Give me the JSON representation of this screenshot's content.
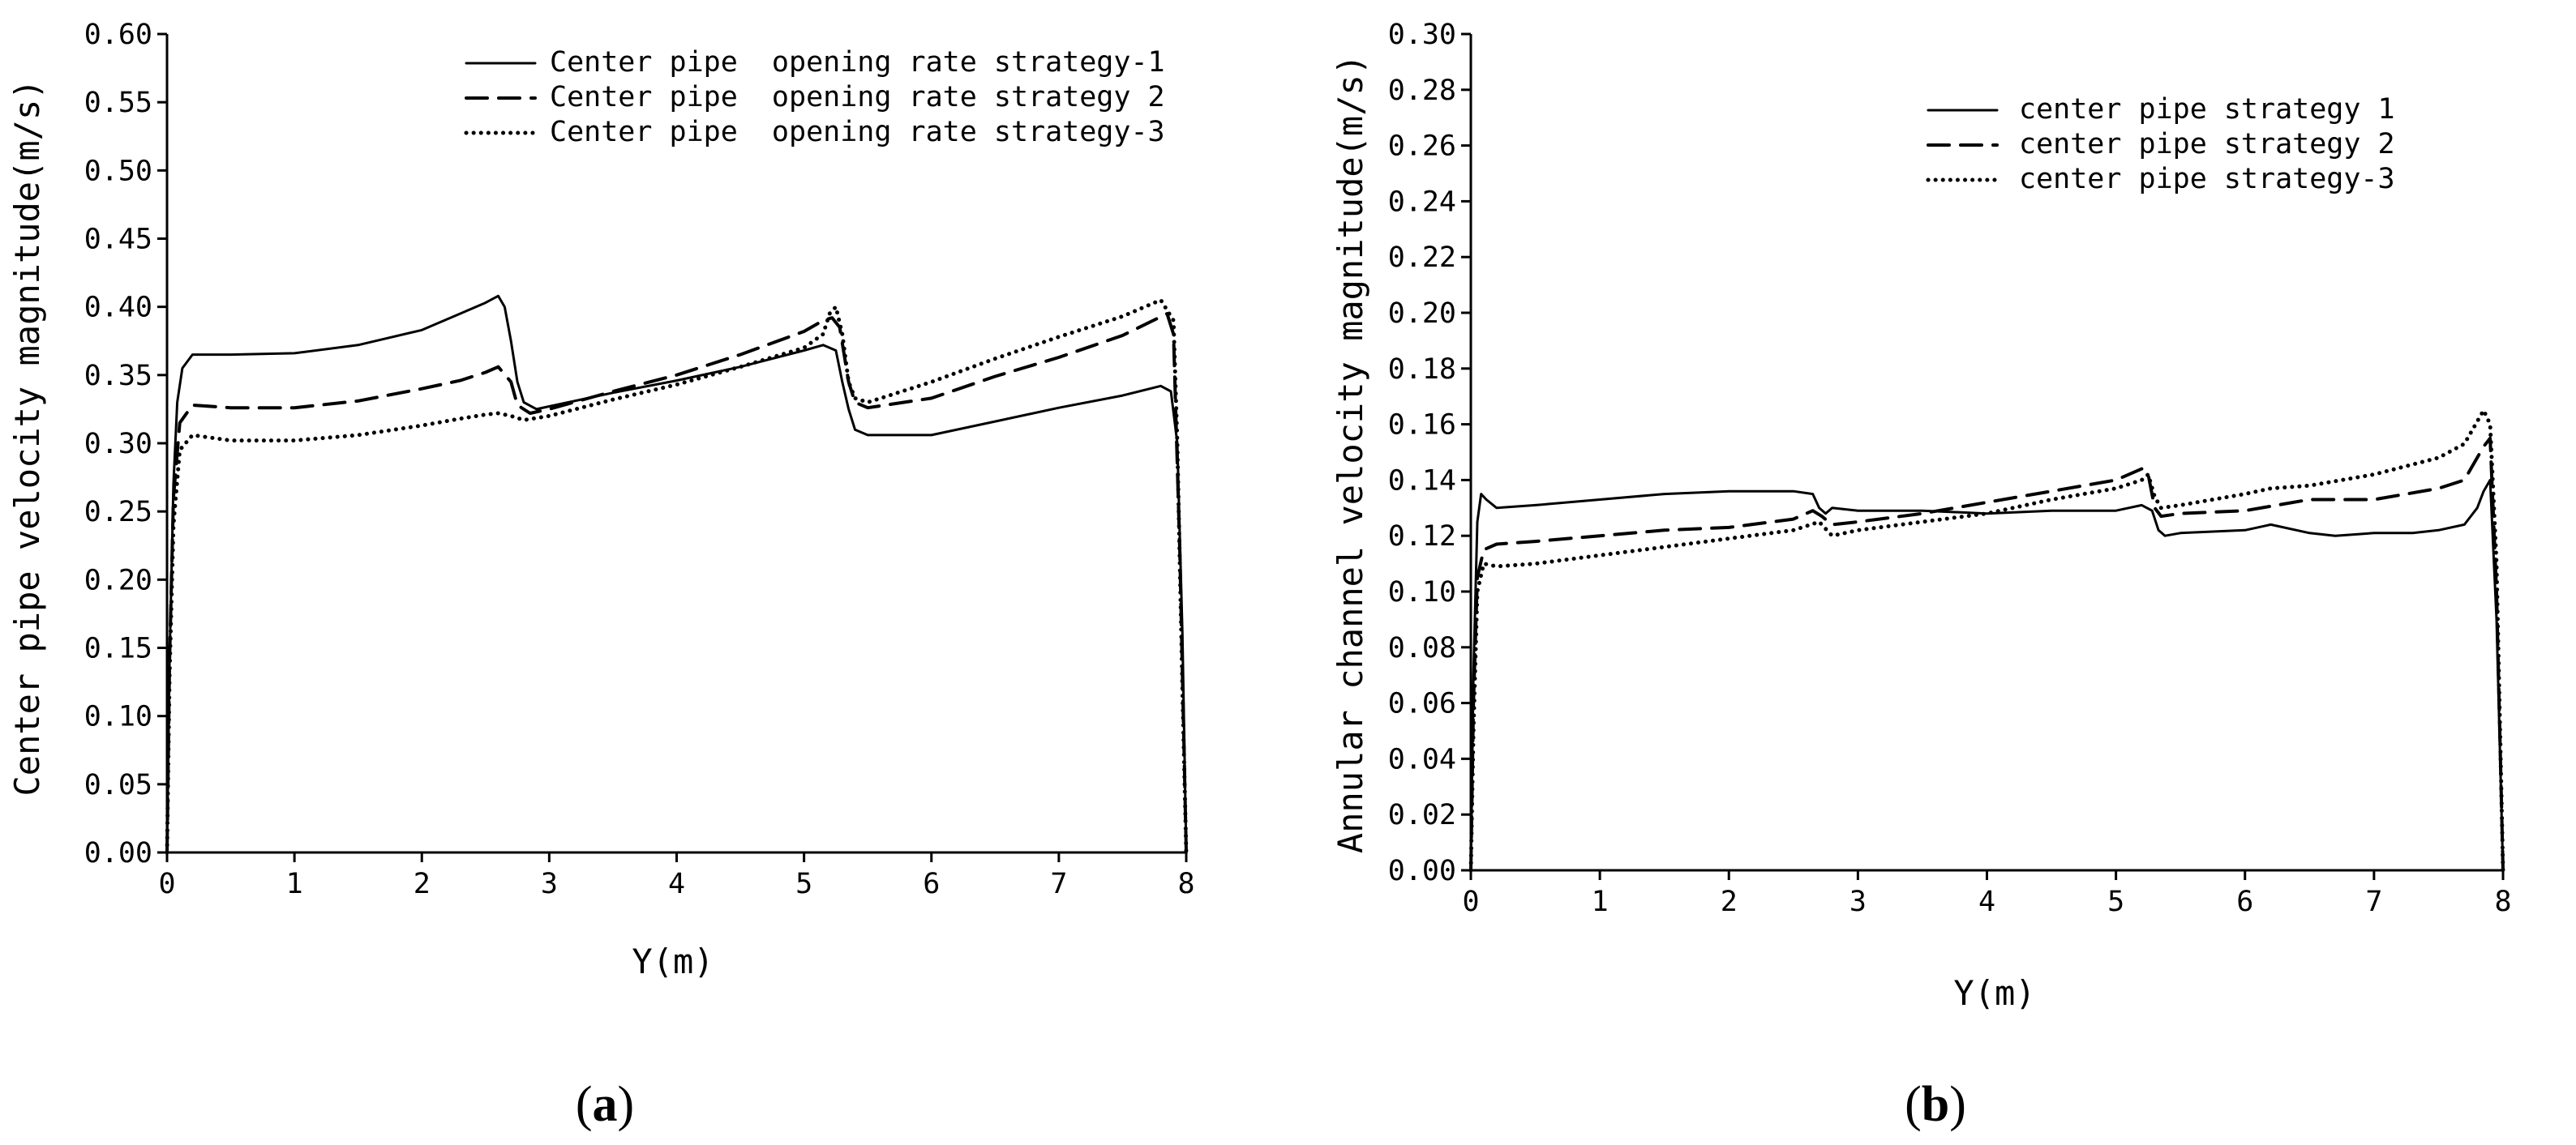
{
  "chart_data": [
    {
      "type": "line",
      "panel_label": "a",
      "title": "",
      "xlabel": "Y(m)",
      "ylabel": "Center pipe velocity magnitude(m/s)",
      "xlim": [
        0,
        8
      ],
      "ylim": [
        0,
        0.6
      ],
      "xticks": [
        "0",
        "1",
        "2",
        "3",
        "4",
        "5",
        "6",
        "7",
        "8"
      ],
      "yticks": [
        "0.00",
        "0.05",
        "0.10",
        "0.15",
        "0.20",
        "0.25",
        "0.30",
        "0.35",
        "0.40",
        "0.45",
        "0.50",
        "0.55",
        "0.60"
      ],
      "legend_position": "top-right",
      "grid": false,
      "series": [
        {
          "name": "Center pipe  opening rate strategy-1",
          "style": "solid",
          "x": [
            0,
            0.02,
            0.05,
            0.08,
            0.12,
            0.2,
            0.5,
            1.0,
            1.5,
            2.0,
            2.3,
            2.5,
            2.6,
            2.65,
            2.7,
            2.75,
            2.8,
            2.9,
            3.0,
            3.5,
            4.0,
            4.5,
            5.0,
            5.15,
            5.25,
            5.3,
            5.35,
            5.4,
            5.5,
            6.0,
            6.5,
            7.0,
            7.5,
            7.8,
            7.88,
            7.93,
            7.97,
            8.0
          ],
          "y": [
            0.0,
            0.14,
            0.27,
            0.33,
            0.355,
            0.365,
            0.365,
            0.366,
            0.372,
            0.383,
            0.395,
            0.403,
            0.408,
            0.4,
            0.375,
            0.345,
            0.33,
            0.325,
            0.327,
            0.337,
            0.346,
            0.356,
            0.368,
            0.372,
            0.368,
            0.345,
            0.325,
            0.31,
            0.306,
            0.306,
            0.316,
            0.326,
            0.335,
            0.342,
            0.338,
            0.3,
            0.16,
            0.0
          ]
        },
        {
          "name": "Center pipe  opening rate strategy 2",
          "style": "dashed",
          "x": [
            0,
            0.02,
            0.05,
            0.1,
            0.2,
            0.5,
            1.0,
            1.5,
            2.0,
            2.3,
            2.5,
            2.6,
            2.7,
            2.75,
            2.85,
            3.0,
            3.5,
            4.0,
            4.5,
            5.0,
            5.15,
            5.22,
            5.28,
            5.35,
            5.4,
            5.5,
            6.0,
            6.5,
            7.0,
            7.5,
            7.85,
            7.9,
            7.95,
            8.0
          ],
          "y": [
            0.0,
            0.14,
            0.26,
            0.315,
            0.328,
            0.326,
            0.326,
            0.331,
            0.34,
            0.346,
            0.352,
            0.356,
            0.345,
            0.328,
            0.322,
            0.325,
            0.338,
            0.35,
            0.365,
            0.382,
            0.39,
            0.392,
            0.385,
            0.345,
            0.33,
            0.326,
            0.333,
            0.349,
            0.363,
            0.379,
            0.395,
            0.38,
            0.22,
            0.0
          ]
        },
        {
          "name": "Center pipe  opening rate strategy-3",
          "style": "dotted",
          "x": [
            0,
            0.02,
            0.05,
            0.1,
            0.2,
            0.5,
            1.0,
            1.5,
            2.0,
            2.3,
            2.5,
            2.6,
            2.7,
            2.8,
            3.0,
            3.5,
            4.0,
            4.5,
            5.0,
            5.15,
            5.2,
            5.25,
            5.3,
            5.35,
            5.4,
            5.5,
            6.0,
            6.5,
            7.0,
            7.5,
            7.75,
            7.8,
            7.9,
            7.93,
            7.97,
            8.0
          ],
          "y": [
            0.0,
            0.13,
            0.24,
            0.295,
            0.306,
            0.302,
            0.302,
            0.306,
            0.313,
            0.318,
            0.321,
            0.322,
            0.32,
            0.317,
            0.32,
            0.332,
            0.343,
            0.356,
            0.37,
            0.38,
            0.395,
            0.4,
            0.38,
            0.345,
            0.333,
            0.33,
            0.345,
            0.362,
            0.378,
            0.393,
            0.403,
            0.405,
            0.39,
            0.3,
            0.12,
            0.0
          ]
        }
      ]
    },
    {
      "type": "line",
      "panel_label": "b",
      "title": "",
      "xlabel": "Y(m)",
      "ylabel": "Annular channel velocity magnitude(m/s)",
      "xlim": [
        0,
        8
      ],
      "ylim": [
        0,
        0.3
      ],
      "xticks": [
        "0",
        "1",
        "2",
        "3",
        "4",
        "5",
        "6",
        "7",
        "8"
      ],
      "yticks": [
        "0.00",
        "0.02",
        "0.04",
        "0.06",
        "0.08",
        "0.10",
        "0.12",
        "0.14",
        "0.16",
        "0.18",
        "0.20",
        "0.22",
        "0.24",
        "0.26",
        "0.28",
        "0.30"
      ],
      "legend_position": "top-right",
      "grid": false,
      "series": [
        {
          "name": "center pipe strategy 1",
          "style": "solid",
          "x": [
            0,
            0.02,
            0.05,
            0.08,
            0.12,
            0.2,
            0.5,
            1.0,
            1.5,
            2.0,
            2.5,
            2.65,
            2.7,
            2.75,
            2.8,
            3.0,
            3.5,
            4.0,
            4.5,
            5.0,
            5.2,
            5.28,
            5.33,
            5.38,
            5.5,
            6.0,
            6.2,
            6.5,
            6.7,
            7.0,
            7.3,
            7.5,
            7.7,
            7.8,
            7.85,
            7.9,
            7.95,
            8.0
          ],
          "y": [
            0.0,
            0.07,
            0.125,
            0.135,
            0.133,
            0.13,
            0.131,
            0.133,
            0.135,
            0.136,
            0.136,
            0.135,
            0.13,
            0.128,
            0.13,
            0.129,
            0.129,
            0.128,
            0.129,
            0.129,
            0.131,
            0.129,
            0.122,
            0.12,
            0.121,
            0.122,
            0.124,
            0.121,
            0.12,
            0.121,
            0.121,
            0.122,
            0.124,
            0.13,
            0.136,
            0.14,
            0.09,
            0.0
          ]
        },
        {
          "name": "center pipe strategy 2",
          "style": "dashed",
          "x": [
            0,
            0.02,
            0.05,
            0.1,
            0.2,
            0.5,
            1.0,
            1.5,
            2.0,
            2.5,
            2.65,
            2.72,
            2.8,
            3.0,
            3.5,
            4.0,
            4.5,
            5.0,
            5.2,
            5.25,
            5.3,
            5.35,
            5.5,
            6.0,
            6.5,
            7.0,
            7.5,
            7.7,
            7.85,
            7.9,
            7.95,
            8.0
          ],
          "y": [
            0.0,
            0.06,
            0.105,
            0.115,
            0.117,
            0.118,
            0.12,
            0.122,
            0.123,
            0.126,
            0.129,
            0.127,
            0.124,
            0.125,
            0.128,
            0.132,
            0.136,
            0.14,
            0.144,
            0.142,
            0.13,
            0.127,
            0.128,
            0.129,
            0.133,
            0.133,
            0.137,
            0.14,
            0.152,
            0.155,
            0.1,
            0.0
          ]
        },
        {
          "name": "center pipe strategy-3",
          "style": "dotted",
          "x": [
            0,
            0.02,
            0.05,
            0.1,
            0.2,
            0.5,
            1.0,
            1.5,
            2.0,
            2.5,
            2.7,
            2.8,
            3.0,
            3.5,
            4.0,
            4.5,
            5.0,
            5.2,
            5.25,
            5.3,
            5.35,
            5.5,
            6.0,
            6.2,
            6.5,
            7.0,
            7.5,
            7.7,
            7.85,
            7.9,
            7.95,
            8.0
          ],
          "y": [
            0.0,
            0.05,
            0.1,
            0.11,
            0.109,
            0.11,
            0.113,
            0.116,
            0.119,
            0.122,
            0.125,
            0.12,
            0.122,
            0.125,
            0.128,
            0.133,
            0.137,
            0.14,
            0.142,
            0.134,
            0.13,
            0.131,
            0.135,
            0.137,
            0.138,
            0.142,
            0.148,
            0.153,
            0.165,
            0.16,
            0.11,
            0.0
          ]
        }
      ]
    }
  ]
}
